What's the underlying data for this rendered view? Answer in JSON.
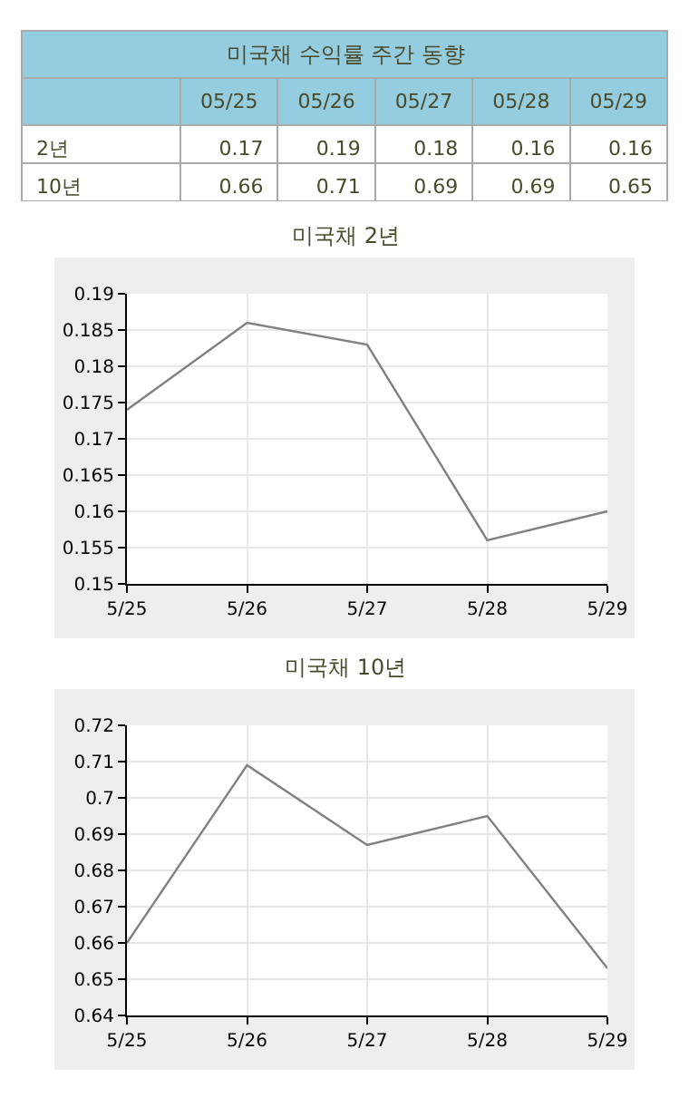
{
  "chart_data": [
    {
      "type": "other",
      "title": "미국채 수익률 주간 동향",
      "categories": [
        "05/25",
        "05/26",
        "05/27",
        "05/28",
        "05/29"
      ],
      "data_labels": true,
      "series": [
        {
          "name": "2년",
          "values": [
            0.17,
            0.19,
            0.18,
            0.16,
            0.16
          ]
        },
        {
          "name": "10년",
          "values": [
            0.66,
            0.71,
            0.69,
            0.69,
            0.65
          ]
        }
      ]
    },
    {
      "type": "line",
      "title": "미국채 2년",
      "categories": [
        "5/25",
        "5/26",
        "5/27",
        "5/28",
        "5/29"
      ],
      "ylim": [
        0.15,
        0.19
      ],
      "yticks": [
        0.15,
        0.155,
        0.16,
        0.165,
        0.17,
        0.175,
        0.18,
        0.185,
        0.19
      ],
      "grid": true,
      "marker": "none",
      "line_style": "solid",
      "series": [
        {
          "color": "#808080",
          "values": [
            0.174,
            0.186,
            0.183,
            0.156,
            0.16
          ]
        }
      ]
    },
    {
      "type": "line",
      "title": "미국채 10년",
      "categories": [
        "5/25",
        "5/26",
        "5/27",
        "5/28",
        "5/29"
      ],
      "ylim": [
        0.64,
        0.72
      ],
      "yticks": [
        0.64,
        0.65,
        0.66,
        0.67,
        0.68,
        0.69,
        0.7,
        0.71,
        0.72
      ],
      "grid": true,
      "marker": "none",
      "line_style": "solid",
      "series": [
        {
          "color": "#808080",
          "values": [
            0.66,
            0.709,
            0.687,
            0.695,
            0.653
          ]
        }
      ]
    }
  ]
}
